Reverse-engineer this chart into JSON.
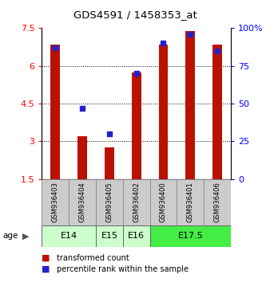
{
  "title": "GDS4591 / 1458353_at",
  "samples": [
    "GSM936403",
    "GSM936404",
    "GSM936405",
    "GSM936402",
    "GSM936400",
    "GSM936401",
    "GSM936406"
  ],
  "transformed_counts": [
    6.85,
    3.2,
    2.75,
    5.75,
    6.85,
    7.4,
    6.85
  ],
  "percentile_ranks": [
    87,
    47,
    30,
    70,
    90,
    96,
    85
  ],
  "col_groups": [
    {
      "label": "E14",
      "cols": [
        0,
        1
      ],
      "color": "#ccffcc"
    },
    {
      "label": "E15",
      "cols": [
        2
      ],
      "color": "#ccffcc"
    },
    {
      "label": "E16",
      "cols": [
        3
      ],
      "color": "#ccffcc"
    },
    {
      "label": "E17.5",
      "cols": [
        4,
        5,
        6
      ],
      "color": "#44ee44"
    }
  ],
  "ylim_left": [
    1.5,
    7.5
  ],
  "ylim_right": [
    0,
    100
  ],
  "yticks_left": [
    1.5,
    3.0,
    4.5,
    6.0,
    7.5
  ],
  "yticks_right": [
    0,
    25,
    50,
    75,
    100
  ],
  "ytick_labels_left": [
    "1.5",
    "3",
    "4.5",
    "6",
    "7.5"
  ],
  "ytick_labels_right": [
    "0",
    "25",
    "50",
    "75",
    "100%"
  ],
  "gridlines": [
    3.0,
    4.5,
    6.0
  ],
  "bar_color": "#bb1100",
  "dot_color": "#2222cc",
  "bar_bottom": 1.5,
  "legend_red": "transformed count",
  "legend_blue": "percentile rank within the sample",
  "sample_box_color": "#cccccc",
  "sample_box_edge": "#888888"
}
